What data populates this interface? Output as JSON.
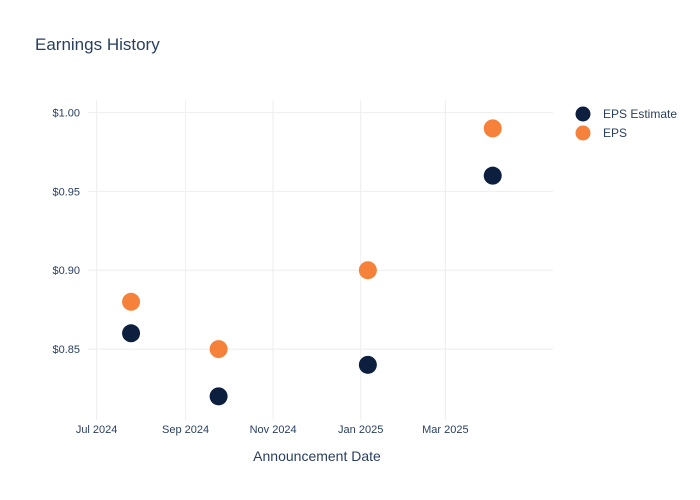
{
  "chart_data": {
    "type": "scatter",
    "title": "Earnings History",
    "xlabel": "Announcement Date",
    "ylabel": "",
    "x_ticks": [
      "Jul 2024",
      "Sep 2024",
      "Nov 2024",
      "Jan 2025",
      "Mar 2025"
    ],
    "x_tick_dates": [
      "2024-07-01",
      "2024-09-01",
      "2024-11-01",
      "2025-01-01",
      "2025-03-01"
    ],
    "xlim": [
      "2024-06-25",
      "2025-05-15"
    ],
    "y_ticks": [
      "$0.85",
      "$0.90",
      "$0.95",
      "$1.00"
    ],
    "y_tick_values": [
      0.85,
      0.9,
      0.95,
      1.0
    ],
    "ylim": [
      0.805,
      1.008
    ],
    "grid": true,
    "legend_position": "top-right",
    "series": [
      {
        "name": "EPS Estimate",
        "color": "#0d1f3f",
        "points": [
          {
            "x": "2024-07-25",
            "y": 0.86
          },
          {
            "x": "2024-09-24",
            "y": 0.82
          },
          {
            "x": "2025-01-06",
            "y": 0.84
          },
          {
            "x": "2025-04-03",
            "y": 0.96
          }
        ]
      },
      {
        "name": "EPS",
        "color": "#f5813a",
        "points": [
          {
            "x": "2024-07-25",
            "y": 0.88
          },
          {
            "x": "2024-09-24",
            "y": 0.85
          },
          {
            "x": "2025-01-06",
            "y": 0.9
          },
          {
            "x": "2025-04-03",
            "y": 0.99
          }
        ]
      }
    ]
  }
}
